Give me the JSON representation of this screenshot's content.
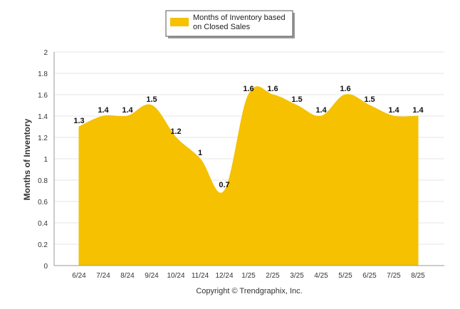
{
  "chart_data": {
    "type": "area",
    "categories": [
      "6/24",
      "7/24",
      "8/24",
      "9/24",
      "10/24",
      "11/24",
      "12/24",
      "1/25",
      "2/25",
      "3/25",
      "4/25",
      "5/25",
      "6/25",
      "7/25",
      "8/25"
    ],
    "series": [
      {
        "name": "Months of Inventory based on Closed Sales",
        "values": [
          1.3,
          1.4,
          1.4,
          1.5,
          1.2,
          1,
          0.7,
          1.6,
          1.6,
          1.5,
          1.4,
          1.6,
          1.5,
          1.4,
          1.4
        ],
        "color": "#f5c100"
      }
    ],
    "ylabel": "Months of Inventory",
    "xlabel": "",
    "ylim": [
      0,
      2
    ],
    "yticks": [
      "0",
      "0.2",
      "0.4",
      "0.6",
      "0.8",
      "1",
      "1.2",
      "1.4",
      "1.6",
      "1.8",
      "2"
    ],
    "data_labels": [
      "1.3",
      "1.4",
      "1.4",
      "1.5",
      "1.2",
      "1",
      "0.7",
      "1.6",
      "1.6",
      "1.5",
      "1.4",
      "1.6",
      "1.5",
      "1.4",
      "1.4"
    ],
    "legend": {
      "position": "top-center",
      "lines": [
        "Months of Inventory based",
        "on Closed Sales"
      ]
    },
    "grid": true,
    "footer": "Copyright © Trendgraphix, Inc."
  }
}
